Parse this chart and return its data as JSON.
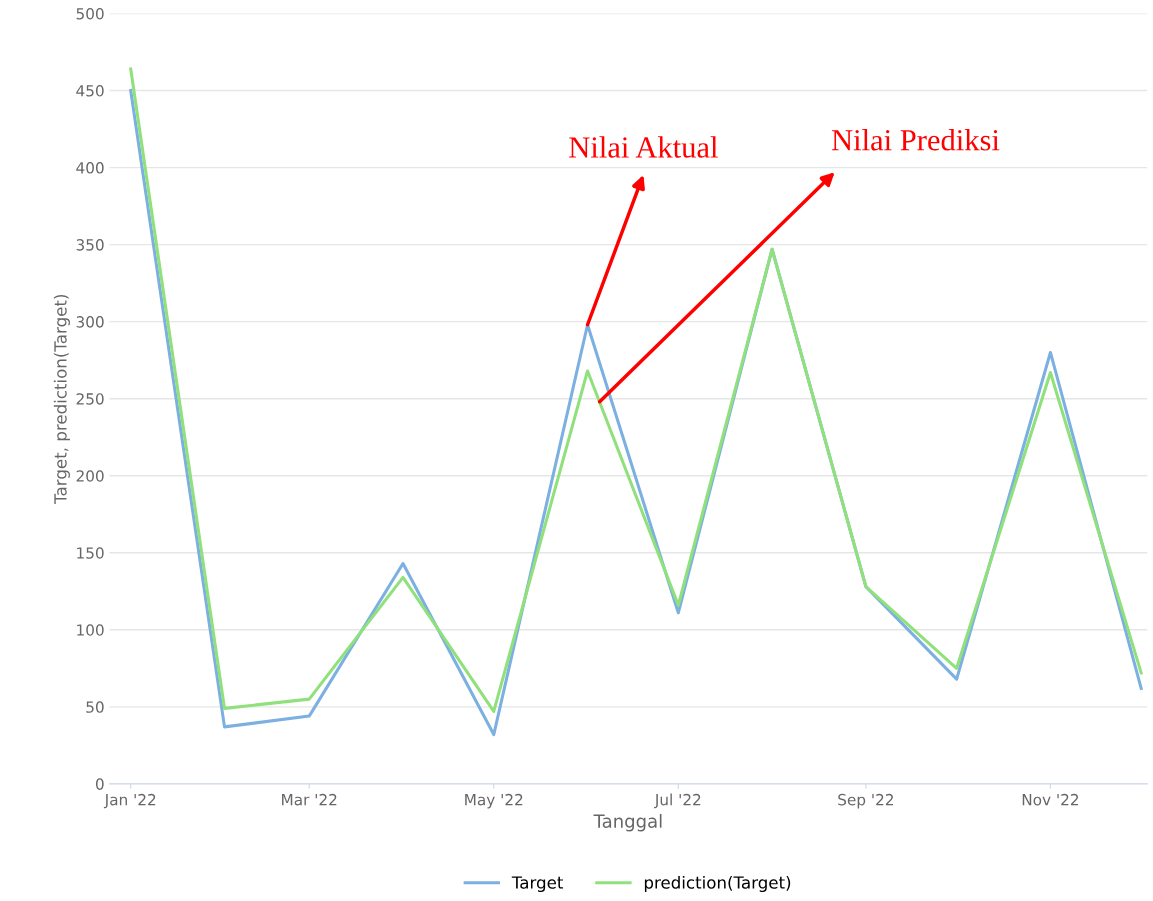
{
  "chart_data": {
    "type": "line",
    "xlabel": "Tanggal",
    "ylabel": "Target, prediction(Target)",
    "x": [
      "2022-01",
      "2022-02",
      "2022-03",
      "2022-04",
      "2022-05",
      "2022-06",
      "2022-07",
      "2022-08",
      "2022-09",
      "2022-10",
      "2022-11",
      "2022-12"
    ],
    "series": [
      {
        "name": "Target",
        "color": "#7cb0e0",
        "values": [
          450,
          37,
          44,
          143,
          32,
          298,
          111,
          347,
          128,
          68,
          280,
          62
        ]
      },
      {
        "name": "prediction(Target)",
        "color": "#90e07c",
        "values": [
          464,
          49,
          55,
          134,
          47,
          268,
          116,
          347,
          128,
          75,
          267,
          72
        ]
      }
    ],
    "xlim": [
      "2021-12-25",
      "2022-12-03"
    ],
    "xticks": [
      {
        "value": "2022-01",
        "label": "Jan '22"
      },
      {
        "value": "2022-03",
        "label": "Mar '22"
      },
      {
        "value": "2022-05",
        "label": "May '22"
      },
      {
        "value": "2022-07",
        "label": "Jul '22"
      },
      {
        "value": "2022-09",
        "label": "Sep '22"
      },
      {
        "value": "2022-11",
        "label": "Nov '22"
      }
    ],
    "ylim": [
      0,
      500
    ],
    "yticks": [
      0,
      50,
      100,
      150,
      200,
      250,
      300,
      350,
      400,
      450,
      500
    ],
    "grid": "y",
    "legend": "bottom",
    "marker": "none",
    "line_style": "solid",
    "annotations": [
      {
        "text": "Nilai Aktual",
        "x": "2022-06",
        "y": 298
      },
      {
        "text": "Nilai Prediksi",
        "x": "2022-06-05",
        "y": 248
      }
    ]
  }
}
